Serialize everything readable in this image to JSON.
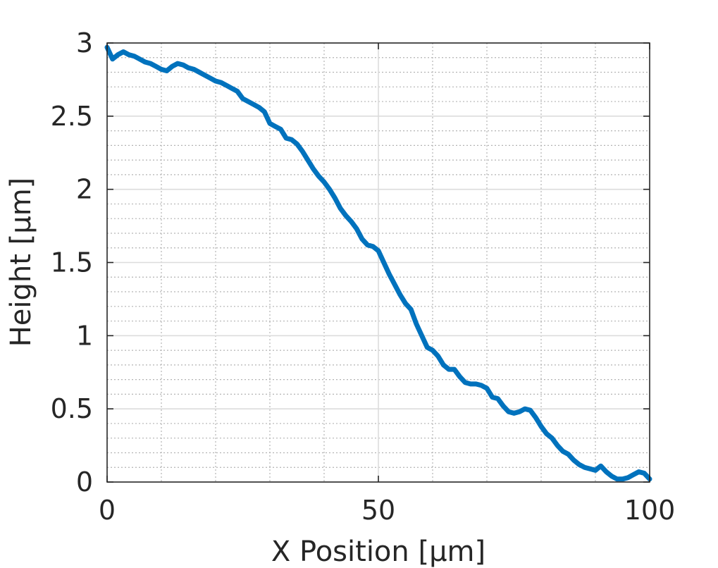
{
  "chart_data": {
    "type": "line",
    "title": "",
    "xlabel": "X Position [μm]",
    "ylabel": "Height [μm]",
    "xlim": [
      0,
      100
    ],
    "ylim": [
      0,
      3
    ],
    "x_ticks": [
      0,
      50,
      100
    ],
    "y_ticks": [
      0,
      0.5,
      1,
      1.5,
      2,
      2.5,
      3
    ],
    "x_tick_labels": [
      "0",
      "50",
      "100"
    ],
    "y_tick_labels": [
      "0",
      "0.5",
      "1",
      "1.5",
      "2",
      "2.5",
      "3"
    ],
    "grid": true,
    "minor_grid": true,
    "legend": "none",
    "series": [
      {
        "color": "#0072BD",
        "x": [
          0,
          1,
          2,
          3,
          4,
          5,
          6,
          7,
          8,
          9,
          10,
          11,
          12,
          13,
          14,
          15,
          16,
          17,
          18,
          19,
          20,
          21,
          22,
          23,
          24,
          25,
          26,
          27,
          28,
          29,
          30,
          31,
          32,
          33,
          34,
          35,
          36,
          37,
          38,
          39,
          40,
          41,
          42,
          43,
          44,
          45,
          46,
          47,
          48,
          49,
          50,
          51,
          52,
          53,
          54,
          55,
          56,
          57,
          58,
          59,
          60,
          61,
          62,
          63,
          64,
          65,
          66,
          67,
          68,
          69,
          70,
          71,
          72,
          73,
          74,
          75,
          76,
          77,
          78,
          79,
          80,
          81,
          82,
          83,
          84,
          85,
          86,
          87,
          88,
          89,
          90,
          91,
          92,
          93,
          94,
          95,
          96,
          97,
          98,
          99,
          100
        ],
        "y": [
          2.97,
          2.89,
          2.92,
          2.94,
          2.92,
          2.91,
          2.89,
          2.87,
          2.86,
          2.84,
          2.82,
          2.81,
          2.84,
          2.86,
          2.85,
          2.83,
          2.82,
          2.8,
          2.78,
          2.76,
          2.74,
          2.73,
          2.71,
          2.69,
          2.67,
          2.62,
          2.6,
          2.58,
          2.56,
          2.53,
          2.45,
          2.43,
          2.41,
          2.35,
          2.34,
          2.31,
          2.26,
          2.2,
          2.14,
          2.09,
          2.05,
          2.0,
          1.94,
          1.87,
          1.82,
          1.78,
          1.73,
          1.66,
          1.62,
          1.61,
          1.58,
          1.5,
          1.42,
          1.35,
          1.28,
          1.22,
          1.18,
          1.08,
          1.0,
          0.92,
          0.9,
          0.86,
          0.8,
          0.77,
          0.77,
          0.72,
          0.68,
          0.67,
          0.67,
          0.66,
          0.64,
          0.58,
          0.57,
          0.52,
          0.48,
          0.47,
          0.48,
          0.5,
          0.49,
          0.44,
          0.38,
          0.33,
          0.3,
          0.25,
          0.21,
          0.19,
          0.15,
          0.12,
          0.1,
          0.09,
          0.08,
          0.11,
          0.07,
          0.04,
          0.02,
          0.02,
          0.03,
          0.05,
          0.07,
          0.06,
          0.02
        ]
      }
    ]
  }
}
